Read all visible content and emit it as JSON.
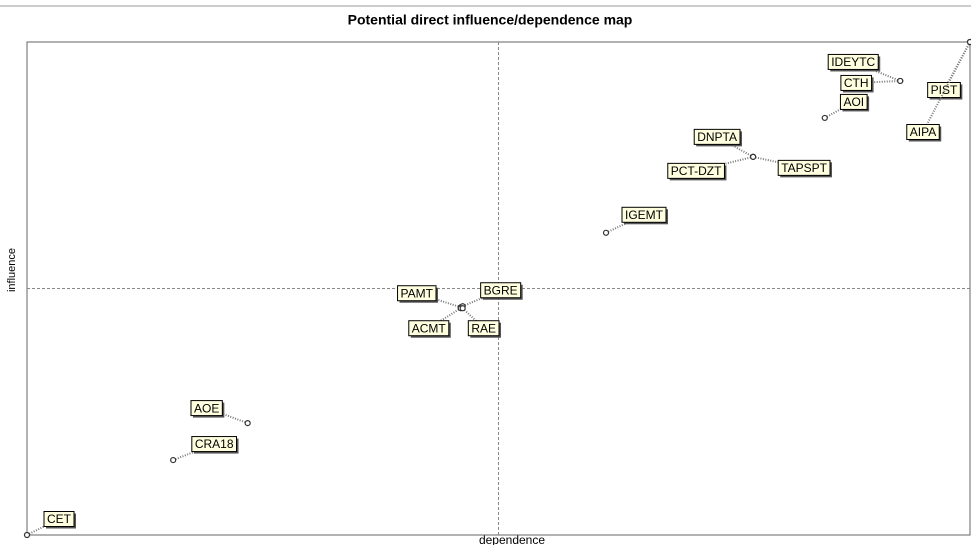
{
  "chart_data": {
    "type": "scatter",
    "title": "Potential direct influence/dependence map",
    "x_label": "dependence",
    "y_label": "influence",
    "labels": [
      "CET",
      "CRA18",
      "AOE",
      "PAMT",
      "BGRE",
      "ACMT",
      "RAE",
      "IGEMT",
      "DNPTA",
      "PCT-DZT",
      "TAPSPT",
      "AOI",
      "IDEYTC",
      "CTH",
      "PIST",
      "AIPA"
    ],
    "x": [
      0,
      15.5,
      23.4,
      46,
      46.2,
      46,
      46.2,
      61.4,
      77,
      77,
      77,
      84.6,
      92.6,
      92.6,
      100,
      100
    ],
    "values": [
      0,
      15.2,
      22.7,
      46.2,
      46.4,
      46,
      46,
      61.3,
      76.7,
      76.7,
      76.7,
      84.6,
      92.1,
      92.1,
      100,
      100
    ],
    "xlim": [
      0,
      100
    ],
    "ylim": [
      0,
      100
    ],
    "label_fill": "#ffffe0",
    "point_color": "#333333"
  }
}
